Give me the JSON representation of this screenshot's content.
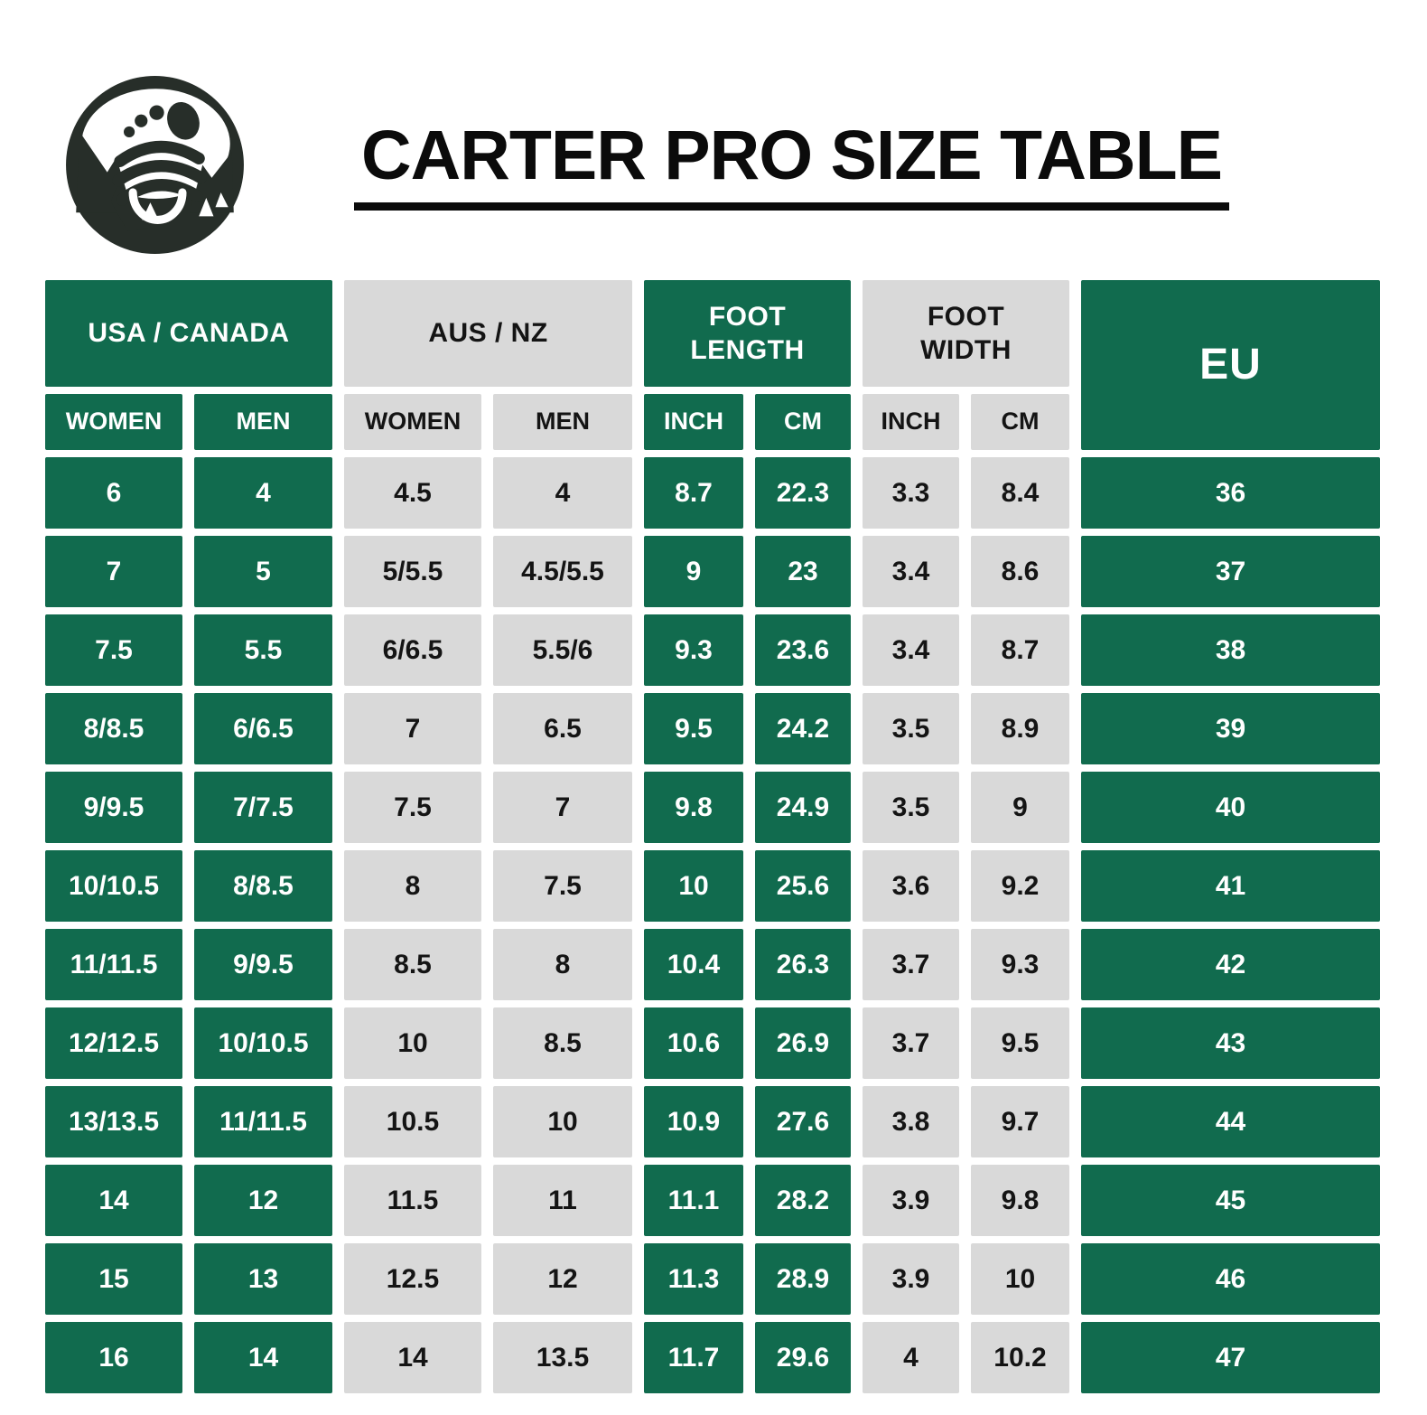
{
  "header": {
    "title": "CARTER PRO SIZE TABLE",
    "logo": "footprint-mountain-logo"
  },
  "colors": {
    "green": "#116B4E",
    "gray": "#D9D9D9",
    "page_background": "#FFFFFF",
    "title_text": "#0B0B0B",
    "green_cell_text": "#FFFFFF",
    "gray_cell_text": "#141414",
    "logo_dark": "#272E29"
  },
  "chart_data": {
    "type": "table",
    "title": "CARTER PRO SIZE TABLE",
    "column_groups": [
      {
        "label": "USA / CANADA",
        "color": "green",
        "sub": [
          "WOMEN",
          "MEN"
        ]
      },
      {
        "label": "AUS / NZ",
        "color": "gray",
        "sub": [
          "WOMEN",
          "MEN"
        ]
      },
      {
        "label": "FOOT LENGTH",
        "color": "green",
        "sub": [
          "INCH",
          "CM"
        ]
      },
      {
        "label": "FOOT WIDTH",
        "color": "gray",
        "sub": [
          "INCH",
          "CM"
        ]
      },
      {
        "label": "EU",
        "color": "green",
        "sub": []
      }
    ],
    "columns": [
      "USA/CANADA WOMEN",
      "USA/CANADA MEN",
      "AUS/NZ WOMEN",
      "AUS/NZ MEN",
      "FOOT LENGTH INCH",
      "FOOT LENGTH CM",
      "FOOT WIDTH INCH",
      "FOOT WIDTH CM",
      "EU"
    ],
    "rows": [
      [
        "6",
        "4",
        "4.5",
        "4",
        "8.7",
        "22.3",
        "3.3",
        "8.4",
        "36"
      ],
      [
        "7",
        "5",
        "5/5.5",
        "4.5/5.5",
        "9",
        "23",
        "3.4",
        "8.6",
        "37"
      ],
      [
        "7.5",
        "5.5",
        "6/6.5",
        "5.5/6",
        "9.3",
        "23.6",
        "3.4",
        "8.7",
        "38"
      ],
      [
        "8/8.5",
        "6/6.5",
        "7",
        "6.5",
        "9.5",
        "24.2",
        "3.5",
        "8.9",
        "39"
      ],
      [
        "9/9.5",
        "7/7.5",
        "7.5",
        "7",
        "9.8",
        "24.9",
        "3.5",
        "9",
        "40"
      ],
      [
        "10/10.5",
        "8/8.5",
        "8",
        "7.5",
        "10",
        "25.6",
        "3.6",
        "9.2",
        "41"
      ],
      [
        "11/11.5",
        "9/9.5",
        "8.5",
        "8",
        "10.4",
        "26.3",
        "3.7",
        "9.3",
        "42"
      ],
      [
        "12/12.5",
        "10/10.5",
        "10",
        "8.5",
        "10.6",
        "26.9",
        "3.7",
        "9.5",
        "43"
      ],
      [
        "13/13.5",
        "11/11.5",
        "10.5",
        "10",
        "10.9",
        "27.6",
        "3.8",
        "9.7",
        "44"
      ],
      [
        "14",
        "12",
        "11.5",
        "11",
        "11.1",
        "28.2",
        "3.9",
        "9.8",
        "45"
      ],
      [
        "15",
        "13",
        "12.5",
        "12",
        "11.3",
        "28.9",
        "3.9",
        "10",
        "46"
      ],
      [
        "16",
        "14",
        "14",
        "13.5",
        "11.7",
        "29.6",
        "4",
        "10.2",
        "47"
      ]
    ]
  }
}
